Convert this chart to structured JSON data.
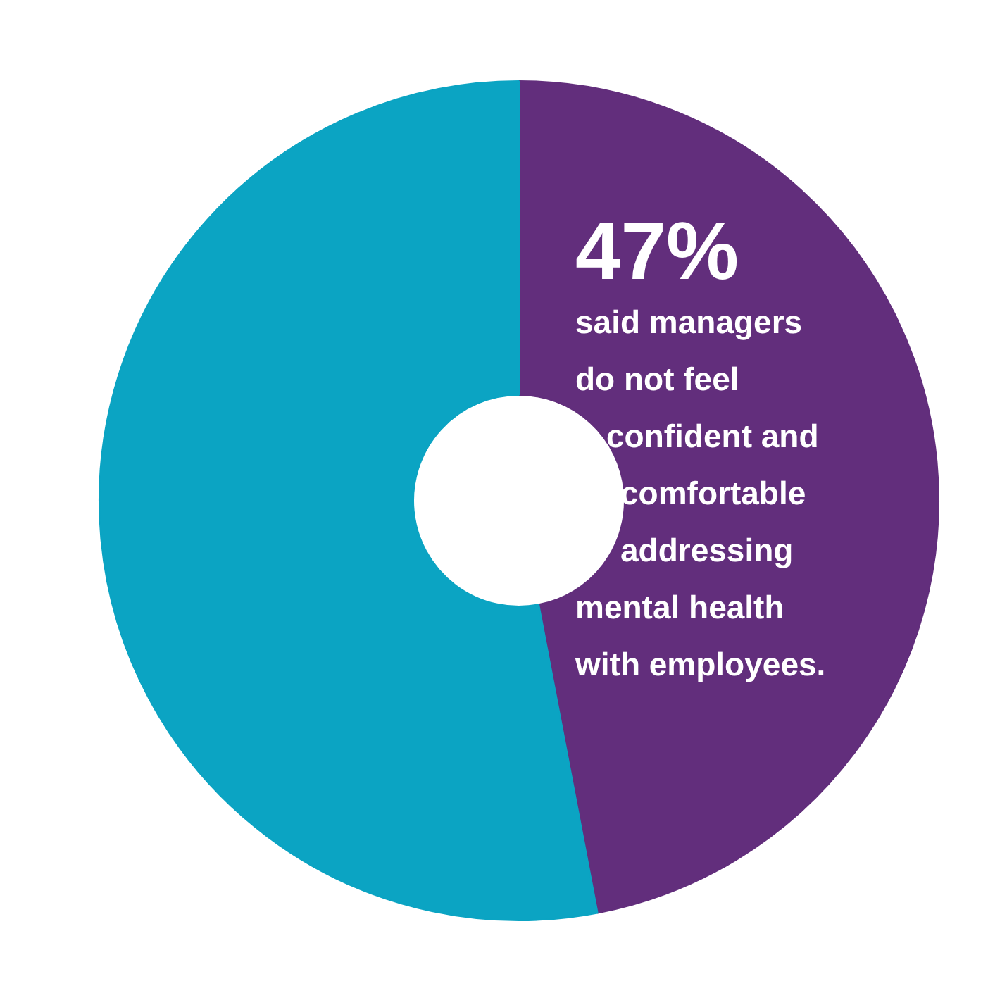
{
  "chart_data": {
    "type": "donut",
    "categories": [
      null,
      null
    ],
    "values": [
      47,
      53
    ],
    "colors": [
      "#622e7c",
      "#0ba4c3"
    ],
    "value_labels": [
      "47%",
      null
    ],
    "annotations": [
      "said managers\ndo not feel\nconfident and\ncomfortable\naddressing\nmental health\nwith employees."
    ]
  }
}
